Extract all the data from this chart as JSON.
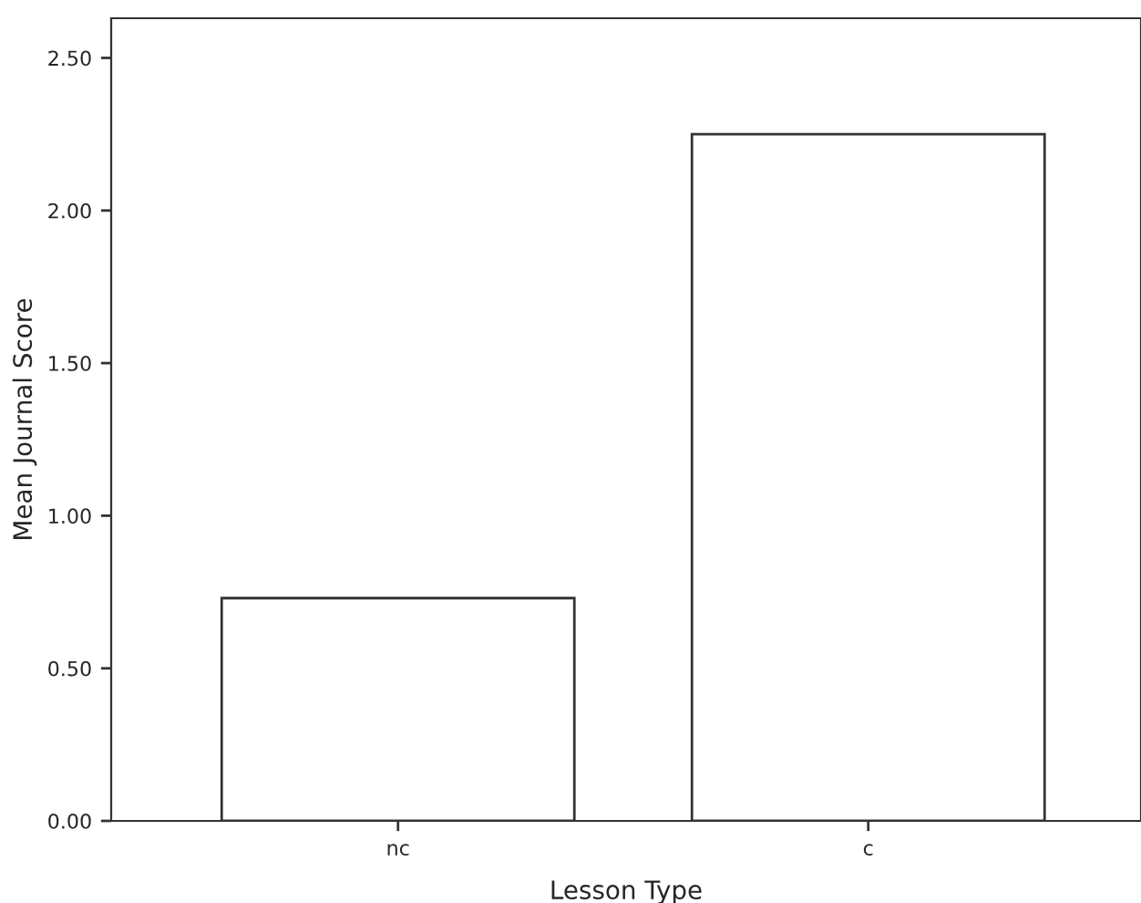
{
  "chart_data": {
    "type": "bar",
    "xlabel": "Lesson Type",
    "ylabel": "Mean Journal Score",
    "categories": [
      "nc",
      "c"
    ],
    "series": [
      {
        "color": "#ffffff",
        "values": [
          0.73,
          2.25
        ]
      }
    ],
    "ylim": [
      0,
      2.63
    ],
    "yticks": [
      {
        "value": 0,
        "label": "0.00"
      },
      {
        "value": 0.5,
        "label": "0.50"
      },
      {
        "value": 1,
        "label": "1.00"
      },
      {
        "value": 1.5,
        "label": "1.50"
      },
      {
        "value": 2,
        "label": "2.00"
      },
      {
        "value": 2.5,
        "label": "2.50"
      }
    ],
    "grid": false,
    "legend": false
  }
}
